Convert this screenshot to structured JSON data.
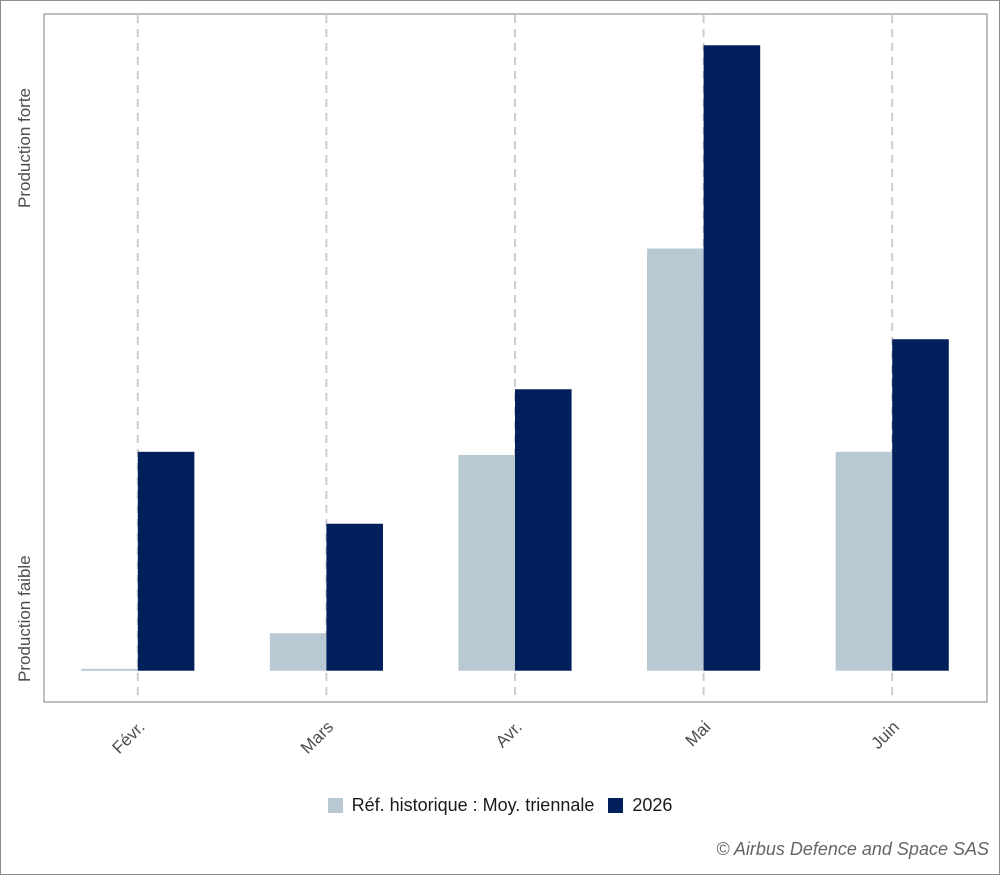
{
  "chart_data": {
    "type": "bar",
    "categories": [
      "Févr.",
      "Mars",
      "Avr.",
      "Mai",
      "Juin"
    ],
    "series": [
      {
        "name": "Réf. historique : Moy. triennale",
        "values": [
          0.3,
          6.0,
          34.5,
          67.5,
          35.0
        ],
        "color": "#b9c9d3"
      },
      {
        "name": "2026",
        "values": [
          35.0,
          23.5,
          45.0,
          100.0,
          53.0
        ],
        "color": "#001f5b"
      }
    ],
    "y_axis_labels": {
      "low": "Production faible",
      "high": "Production forte"
    },
    "ylim": [
      -5,
      105
    ],
    "x_tick_rotation": "-45deg",
    "grid": "vertical dashed lines at categories",
    "legend_position": "bottom"
  },
  "credit": "© Airbus Defence and Space SAS"
}
